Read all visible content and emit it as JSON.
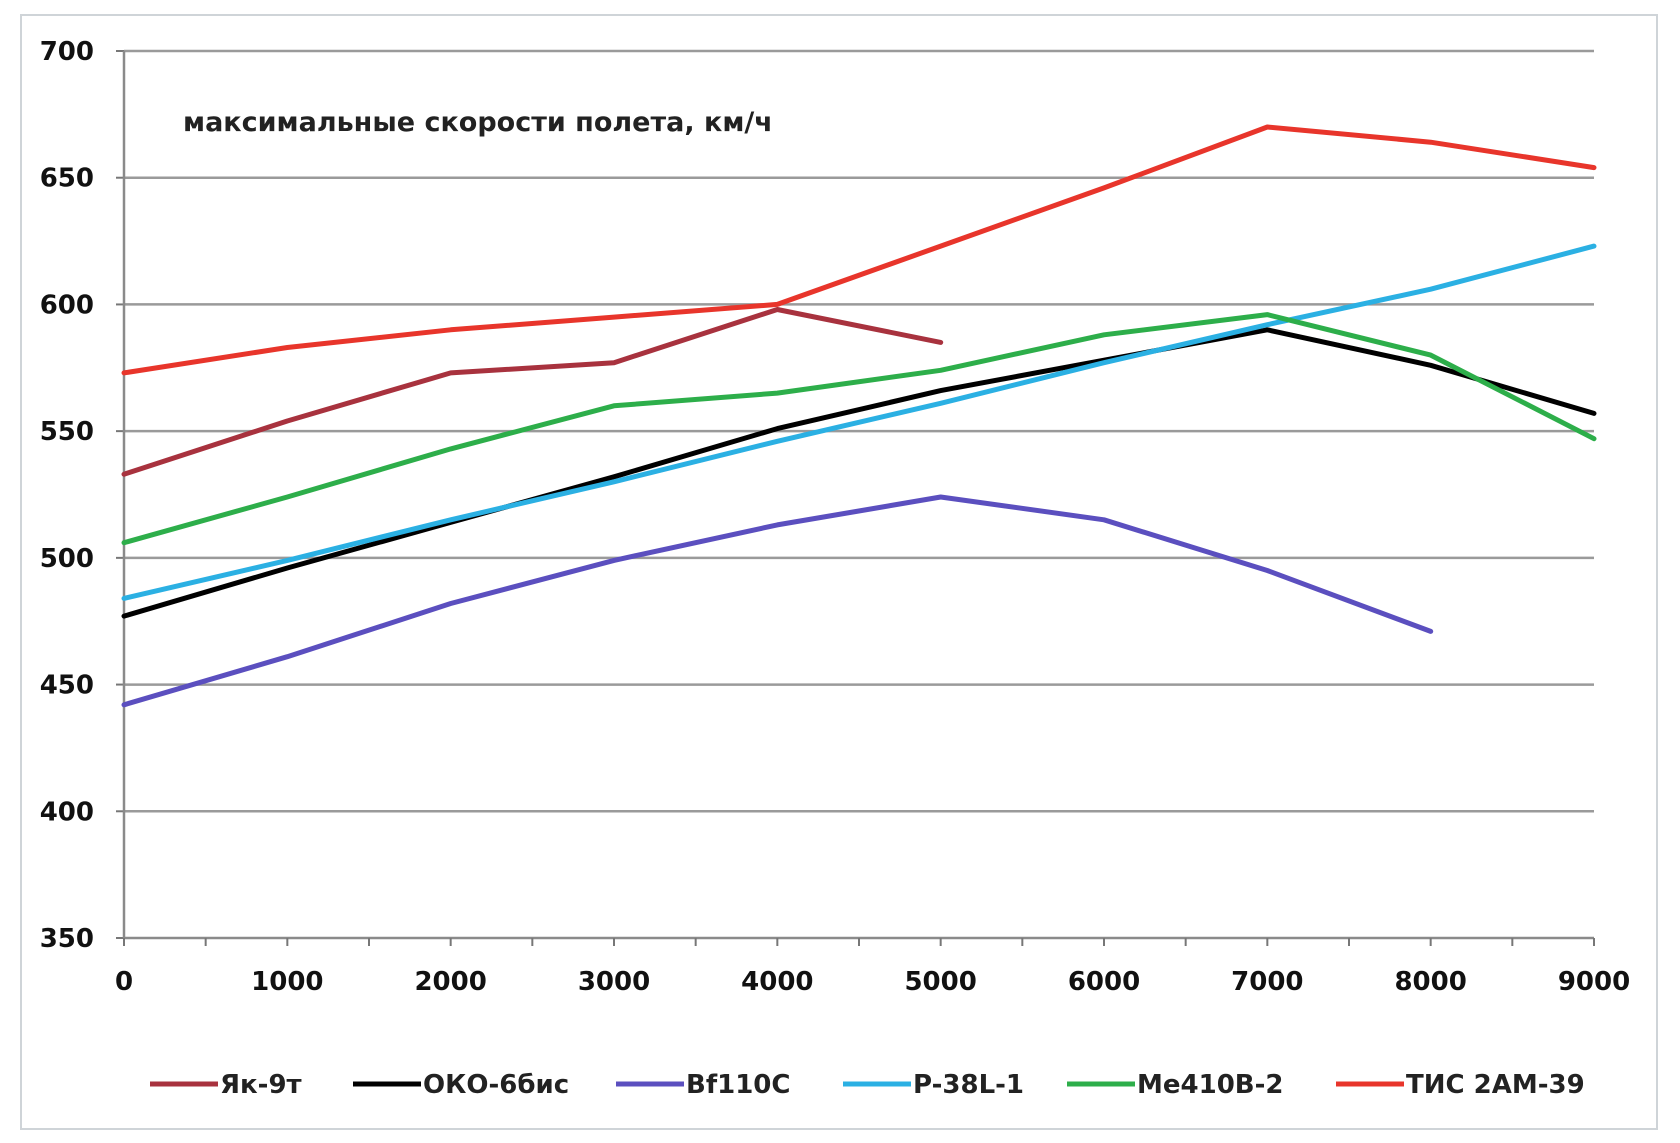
{
  "chart_data": {
    "type": "line",
    "title": "максимальные скорости полета, км/ч",
    "xlabel": "",
    "ylabel": "",
    "xlim": [
      0,
      9000
    ],
    "ylim": [
      350,
      700
    ],
    "x_ticks": [
      "0",
      "1000",
      "2000",
      "3000",
      "4000",
      "5000",
      "6000",
      "7000",
      "8000",
      "9000"
    ],
    "y_ticks": [
      "350",
      "400",
      "450",
      "500",
      "550",
      "600",
      "650",
      "700"
    ],
    "grid": true,
    "legend_position": "bottom",
    "series": [
      {
        "name": "Як-9т",
        "color": "#a8323e",
        "x": [
          0,
          1000,
          2000,
          3000,
          4000,
          5000
        ],
        "y": [
          533,
          554,
          573,
          577,
          598,
          585
        ]
      },
      {
        "name": "ОКО-6бис",
        "color": "#000000",
        "x": [
          0,
          1000,
          2000,
          3000,
          4000,
          5000,
          6000,
          7000,
          8000,
          9000
        ],
        "y": [
          477,
          496,
          514,
          532,
          551,
          566,
          578,
          590,
          576,
          557
        ]
      },
      {
        "name": "Bf110C",
        "color": "#5b4fbf",
        "x": [
          0,
          1000,
          2000,
          3000,
          4000,
          5000,
          6000,
          7000,
          8000
        ],
        "y": [
          442,
          461,
          482,
          499,
          513,
          524,
          515,
          495,
          471
        ]
      },
      {
        "name": "P-38L-1",
        "color": "#2bb0e3",
        "x": [
          0,
          1000,
          2000,
          3000,
          4000,
          5000,
          6000,
          7000,
          8000,
          9000
        ],
        "y": [
          484,
          499,
          515,
          530,
          546,
          561,
          577,
          592,
          606,
          623
        ]
      },
      {
        "name": "Me410B-2",
        "color": "#2dae4a",
        "x": [
          0,
          1000,
          2000,
          3000,
          4000,
          5000,
          6000,
          7000,
          8000,
          9000
        ],
        "y": [
          506,
          524,
          543,
          560,
          565,
          574,
          588,
          596,
          580,
          547
        ]
      },
      {
        "name": "ТИС 2АМ-39",
        "color": "#e8352b",
        "x": [
          0,
          1000,
          2000,
          3000,
          4000,
          5000,
          6000,
          7000,
          8000,
          9000
        ],
        "y": [
          573,
          583,
          590,
          595,
          600,
          623,
          646,
          670,
          664,
          654
        ]
      }
    ]
  }
}
